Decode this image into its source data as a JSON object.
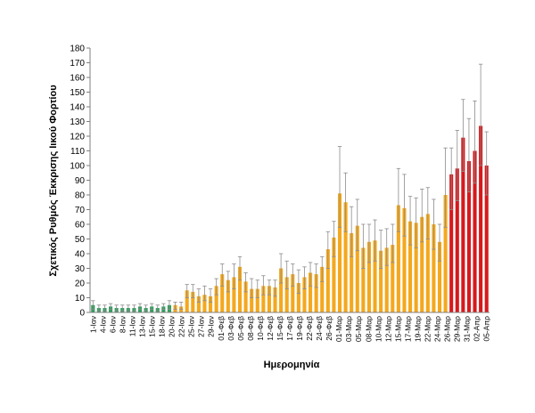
{
  "chart_data": {
    "type": "bar",
    "title": "",
    "xlabel": "Ημερομηνία",
    "ylabel": "Σχετικός Ρυθμός Έκκρισης Ιικού Φορτίου",
    "ylim": [
      0,
      180
    ],
    "yticks": [
      0,
      10,
      20,
      30,
      40,
      50,
      60,
      70,
      80,
      90,
      100,
      110,
      120,
      130,
      140,
      150,
      160,
      170,
      180
    ],
    "grid": false,
    "legend": "none",
    "colors": {
      "green": "#2e9e5b",
      "orange": "#f4a81d",
      "red": "#d7191c",
      "errorbar": "#8c8c8c",
      "axis": "#7f7f7f"
    },
    "x_tick_labels": [
      "1-Ιαν",
      "4-Ιαν",
      "6-Ιαν",
      "8-Ιαν",
      "11-Ιαν",
      "13-Ιαν",
      "15-Ιαν",
      "18-Ιαν",
      "20-Ιαν",
      "22-Ιαν",
      "25-Ιαν",
      "27-Ιαν",
      "29-Ιαν",
      "01-Φεβ",
      "03-Φεβ",
      "05-Φεβ",
      "08-Φεβ",
      "10-Φεβ",
      "12-Φεβ",
      "15-Φεβ",
      "17-Φεβ",
      "19-Φεβ",
      "22-Φεβ",
      "24-Φεβ",
      "26-Φεβ",
      "01-Μαρ",
      "03-Μαρ",
      "05-Μαρ",
      "08-Μαρ",
      "10-Μαρ",
      "12-Μαρ",
      "15-Μαρ",
      "17-Μαρ",
      "19-Μαρ",
      "22-Μαρ",
      "24-Μαρ",
      "26-Μαρ",
      "29-Μαρ",
      "31-Μαρ",
      "02-Απρ",
      "05-Απρ"
    ],
    "values": [
      5,
      3,
      3,
      4,
      3,
      3,
      3,
      3,
      4,
      3,
      4,
      3,
      4,
      5,
      5,
      4,
      15,
      14,
      11,
      12,
      11,
      18,
      26,
      22,
      24,
      31,
      21,
      16,
      16,
      18,
      18,
      17,
      30,
      24,
      26,
      20,
      24,
      27,
      26,
      31,
      43,
      51,
      81,
      75,
      54,
      59,
      44,
      48,
      49,
      42,
      44,
      46,
      73,
      71,
      62,
      61,
      65,
      67,
      60,
      48,
      80,
      94,
      98,
      119,
      103,
      110,
      127,
      100
    ],
    "err_high": [
      8,
      5,
      5,
      6,
      5,
      5,
      5,
      5,
      6,
      5,
      6,
      5,
      6,
      8,
      7,
      7,
      19,
      19,
      16,
      18,
      16,
      23,
      33,
      28,
      33,
      38,
      27,
      23,
      22,
      25,
      22,
      22,
      40,
      35,
      33,
      29,
      31,
      34,
      33,
      38,
      55,
      62,
      113,
      95,
      72,
      77,
      60,
      60,
      63,
      56,
      57,
      60,
      98,
      94,
      79,
      78,
      84,
      85,
      77,
      60,
      112,
      112,
      124,
      145,
      132,
      144,
      169,
      123
    ],
    "err_low": [
      2,
      1,
      1,
      2,
      1,
      1,
      1,
      1,
      2,
      1,
      2,
      1,
      2,
      2,
      2,
      2,
      10,
      10,
      7,
      8,
      7,
      12,
      18,
      14,
      16,
      22,
      14,
      10,
      10,
      12,
      12,
      11,
      20,
      16,
      18,
      13,
      16,
      18,
      17,
      21,
      30,
      38,
      58,
      55,
      38,
      42,
      30,
      34,
      35,
      30,
      32,
      34,
      55,
      52,
      46,
      44,
      48,
      50,
      43,
      35,
      58,
      70,
      76,
      96,
      82,
      88,
      100,
      80
    ],
    "color_groups": {
      "green_count": 14,
      "orange_count": 47,
      "red_count": 7
    }
  }
}
